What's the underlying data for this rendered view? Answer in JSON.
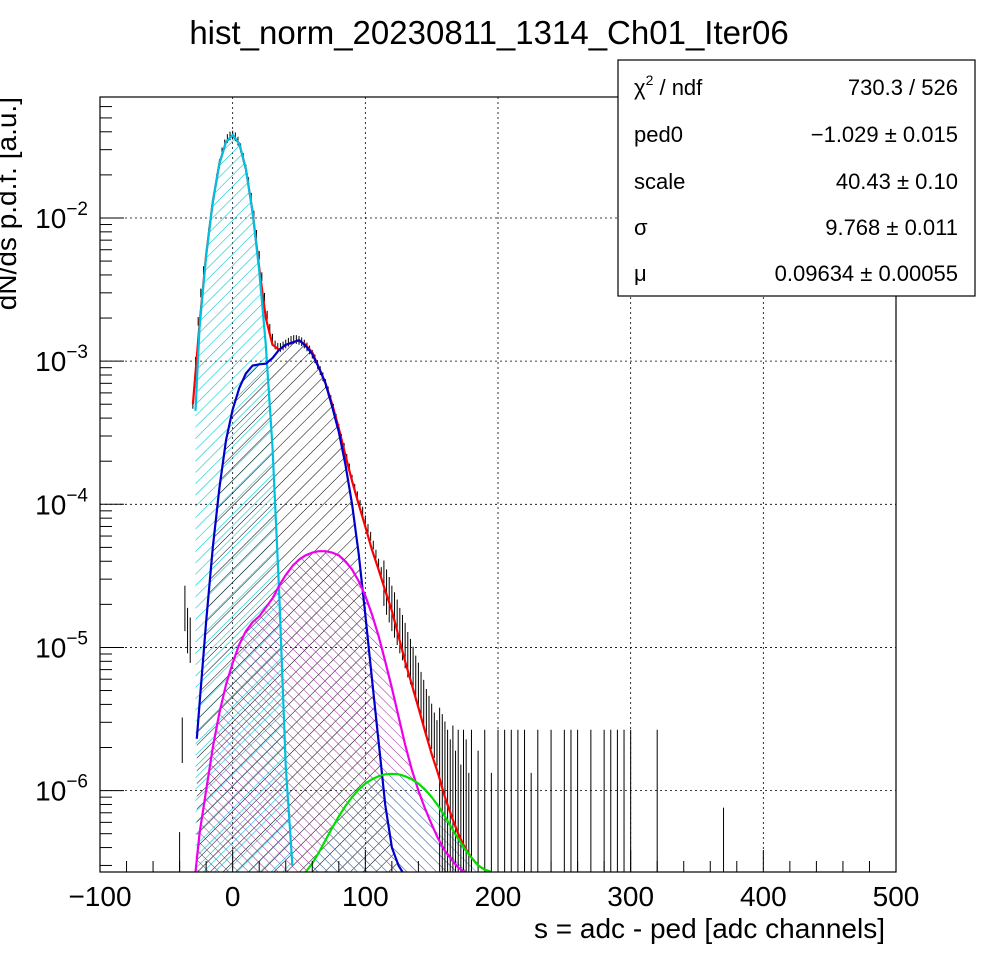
{
  "chart_data": {
    "type": "line",
    "title": "hist_norm_20230811_1314_Ch01_Iter06",
    "xlabel": "s = adc - ped [adc channels]",
    "ylabel": "dN/ds p.d.f. [a.u.]",
    "xlim": [
      -100,
      500
    ],
    "ylim": [
      2.7e-07,
      0.07
    ],
    "yscale": "log",
    "grid": true,
    "x_ticks": [
      -100,
      0,
      100,
      200,
      300,
      400,
      500
    ],
    "x_tick_labels": [
      "−100",
      "0",
      "100",
      "200",
      "300",
      "400",
      "500"
    ],
    "y_ticks": [
      1e-06,
      1e-05,
      0.0001,
      0.001,
      0.01
    ],
    "y_tick_labels": [
      {
        "base": "10",
        "exp": "−6"
      },
      {
        "base": "10",
        "exp": "−5"
      },
      {
        "base": "10",
        "exp": "−4"
      },
      {
        "base": "10",
        "exp": "−3"
      },
      {
        "base": "10",
        "exp": "−2"
      }
    ],
    "series": [
      {
        "color": "#ff0000",
        "role": "total-fit",
        "x": [
          -30,
          -25,
          -20,
          -15,
          -10,
          -5,
          0,
          5,
          10,
          15,
          20,
          25,
          30,
          35,
          40,
          45,
          50,
          55,
          60,
          65,
          70,
          75,
          80,
          85,
          90,
          95,
          100,
          105,
          110,
          115,
          120,
          125,
          130,
          135,
          140,
          145,
          150,
          155,
          160,
          165,
          170,
          175,
          180,
          185,
          190,
          195
        ],
        "y": [
          0.0005,
          0.0018,
          0.0055,
          0.013,
          0.024,
          0.034,
          0.038,
          0.033,
          0.022,
          0.011,
          0.0045,
          0.002,
          0.0013,
          0.0012,
          0.0013,
          0.00135,
          0.0014,
          0.0013,
          0.00115,
          0.0009,
          0.0007,
          0.0005,
          0.00034,
          0.00022,
          0.000145,
          0.0001,
          7e-05,
          4.8e-05,
          3.5e-05,
          2.5e-05,
          1.8e-05,
          1.2e-05,
          8e-06,
          5.5e-06,
          3.8e-06,
          2.6e-06,
          1.8e-06,
          1.3e-06,
          9e-07,
          6.6e-07,
          5e-07,
          4e-07,
          3.4e-07,
          3e-07,
          2.8e-07,
          2.7e-07
        ]
      },
      {
        "color": "#00c0e0",
        "role": "pedestal",
        "x": [
          -28,
          -25,
          -20,
          -15,
          -10,
          -5,
          0,
          5,
          10,
          15,
          20,
          25,
          30,
          35,
          40,
          45
        ],
        "y": [
          0.00045,
          0.0017,
          0.0054,
          0.013,
          0.024,
          0.034,
          0.038,
          0.033,
          0.022,
          0.011,
          0.0043,
          0.0013,
          0.00025,
          2.5e-05,
          1.5e-06,
          3e-07
        ]
      },
      {
        "color": "#0000cc",
        "role": "1pe",
        "x": [
          -27,
          -25,
          -20,
          -15,
          -10,
          -5,
          0,
          5,
          10,
          15,
          20,
          25,
          30,
          35,
          40,
          45,
          50,
          55,
          60,
          65,
          70,
          75,
          80,
          85,
          90,
          95,
          100,
          105,
          110,
          115,
          120,
          125,
          128
        ],
        "y": [
          2.3e-06,
          4e-06,
          1.5e-05,
          5e-05,
          0.00013,
          0.00028,
          0.00046,
          0.00065,
          0.00082,
          0.00093,
          0.00095,
          0.00096,
          0.00105,
          0.0012,
          0.0013,
          0.00135,
          0.0014,
          0.00128,
          0.00112,
          0.0009,
          0.0007,
          0.00048,
          0.00032,
          0.00019,
          0.0001,
          4.5e-05,
          1.7e-05,
          6e-06,
          2.2e-06,
          8e-07,
          4e-07,
          3e-07,
          2.7e-07
        ]
      },
      {
        "color": "#ee00ee",
        "role": "2pe",
        "x": [
          -28,
          -25,
          -20,
          -15,
          -10,
          -5,
          0,
          5,
          10,
          15,
          20,
          25,
          30,
          35,
          40,
          45,
          50,
          55,
          60,
          65,
          70,
          75,
          80,
          85,
          90,
          95,
          100,
          105,
          110,
          115,
          120,
          125,
          130,
          135,
          140,
          145,
          150,
          155,
          160,
          165,
          170,
          175
        ],
        "y": [
          2.7e-07,
          5e-07,
          1e-06,
          2e-06,
          3.5e-06,
          5.5e-06,
          7.8e-06,
          1.05e-05,
          1.3e-05,
          1.5e-05,
          1.65e-05,
          1.9e-05,
          2.2e-05,
          2.7e-05,
          3.2e-05,
          3.7e-05,
          4.1e-05,
          4.4e-05,
          4.6e-05,
          4.7e-05,
          4.7e-05,
          4.6e-05,
          4.4e-05,
          4e-05,
          3.5e-05,
          2.9e-05,
          2.3e-05,
          1.7e-05,
          1.2e-05,
          8e-06,
          5.2e-06,
          3.3e-06,
          2.1e-06,
          1.4e-06,
          1e-06,
          7.5e-07,
          5.8e-07,
          4.6e-07,
          3.8e-07,
          3.3e-07,
          2.9e-07,
          2.7e-07
        ]
      },
      {
        "color": "#00e000",
        "role": "3pe",
        "x": [
          55,
          60,
          65,
          70,
          75,
          80,
          85,
          90,
          95,
          100,
          105,
          110,
          115,
          120,
          125,
          130,
          135,
          140,
          145,
          150,
          155,
          160,
          165,
          170,
          175,
          180,
          185,
          190,
          195
        ],
        "y": [
          2.7e-07,
          3.1e-07,
          3.7e-07,
          4.5e-07,
          5.5e-07,
          6.6e-07,
          7.8e-07,
          9e-07,
          1.02e-06,
          1.12e-06,
          1.2e-06,
          1.26e-06,
          1.3e-06,
          1.31e-06,
          1.3e-06,
          1.26e-06,
          1.2e-06,
          1.12e-06,
          1.02e-06,
          9e-07,
          7.8e-07,
          6.6e-07,
          5.5e-07,
          4.6e-07,
          3.9e-07,
          3.4e-07,
          3e-07,
          2.8e-07,
          2.7e-07
        ]
      }
    ],
    "data_points": {
      "color": "#000000",
      "x": [
        -40,
        -38,
        -36,
        -34,
        -32,
        -30,
        -28,
        -26,
        -24,
        -22,
        -20,
        -18,
        -16,
        -14,
        -12,
        -10,
        -8,
        -6,
        -4,
        -2,
        0,
        2,
        4,
        6,
        8,
        10,
        12,
        14,
        16,
        18,
        20,
        22,
        24,
        26,
        28,
        30,
        32,
        34,
        36,
        38,
        40,
        42,
        44,
        46,
        48,
        50,
        52,
        54,
        56,
        58,
        60,
        62,
        64,
        66,
        68,
        70,
        72,
        74,
        76,
        78,
        80,
        82,
        84,
        86,
        88,
        90,
        92,
        94,
        96,
        98,
        100,
        102,
        104,
        106,
        108,
        110,
        112,
        114,
        116,
        118,
        120,
        122,
        124,
        126,
        128,
        130,
        132,
        134,
        136,
        138,
        140,
        142,
        144,
        146,
        148,
        150,
        152,
        154,
        156,
        158,
        160,
        162,
        164,
        166,
        168,
        170,
        172,
        174,
        176,
        178,
        180,
        185,
        190,
        195,
        200,
        205,
        210,
        215,
        220,
        225,
        230,
        240,
        250,
        255,
        260,
        270,
        280,
        285,
        290,
        295,
        300,
        320,
        370
      ],
      "y": [
        2.7e-07,
        2.4e-06,
        2e-05,
        1.4e-05,
        1.2e-05,
        0.0005,
        0.001,
        0.0019,
        0.003,
        0.0043,
        0.0056,
        0.008,
        0.011,
        0.0145,
        0.019,
        0.024,
        0.029,
        0.033,
        0.036,
        0.0375,
        0.038,
        0.037,
        0.0345,
        0.031,
        0.0265,
        0.022,
        0.018,
        0.014,
        0.0105,
        0.0077,
        0.0055,
        0.0039,
        0.0028,
        0.0021,
        0.0017,
        0.00145,
        0.0013,
        0.00125,
        0.00125,
        0.00128,
        0.00132,
        0.00136,
        0.0014,
        0.00142,
        0.00142,
        0.0014,
        0.00137,
        0.00132,
        0.00126,
        0.0012,
        0.00112,
        0.00104,
        0.00095,
        0.00086,
        0.00078,
        0.0007,
        0.00062,
        0.00054,
        0.00047,
        0.0004,
        0.00034,
        0.00029,
        0.00025,
        0.00021,
        0.00018,
        0.00015,
        0.00013,
        0.000115,
        0.0001,
        9e-05,
        7.8e-05,
        6.8e-05,
        6e-05,
        5.2e-05,
        4.5e-05,
        3.9e-05,
        3.4e-05,
        3e-05,
        2.6e-05,
        2.3e-05,
        2e-05,
        1.8e-05,
        1.6e-05,
        1.4e-05,
        1.25e-05,
        1.1e-05,
        9.5e-06,
        8.5e-06,
        7.5e-06,
        6.5e-06,
        5.8e-06,
        5e-06,
        4.4e-06,
        3.8e-06,
        3.4e-06,
        3e-06,
        2.6e-06,
        2.3e-06,
        2e-06,
        1.8e-06,
        1.6e-06,
        1.4e-06,
        1.2e-06,
        1.5e-06,
        1e-06,
        1.4e-06,
        8e-07,
        1.4e-06,
        1.2e-06,
        7e-07,
        1.4e-06,
        1e-06,
        1.4e-06,
        7e-07,
        1.4e-06,
        1.4e-06,
        1.4e-06,
        1.4e-06,
        1.4e-06,
        7e-07,
        1.4e-06,
        1.4e-06,
        1.4e-06,
        1.4e-06,
        1.4e-06,
        1.4e-06,
        1.4e-06,
        1.4e-06,
        1.4e-06,
        1.4e-06,
        1.4e-06,
        1.4e-06,
        4e-07
      ]
    },
    "stats_box": {
      "rows": [
        {
          "label": "χ",
          "label_sup": "2",
          "label_rest": " / ndf",
          "value": "730.3 / 526"
        },
        {
          "label": "ped0",
          "label_sup": "",
          "label_rest": "",
          "value": "−1.029 ± 0.015"
        },
        {
          "label": "scale",
          "label_sup": "",
          "label_rest": "",
          "value": "40.43 ± 0.10"
        },
        {
          "label": "σ",
          "label_sup": "",
          "label_rest": "",
          "value": "9.768 ± 0.011"
        },
        {
          "label": "μ",
          "label_sup": "",
          "label_rest": "",
          "value": "0.09634 ± 0.00055"
        }
      ]
    }
  }
}
